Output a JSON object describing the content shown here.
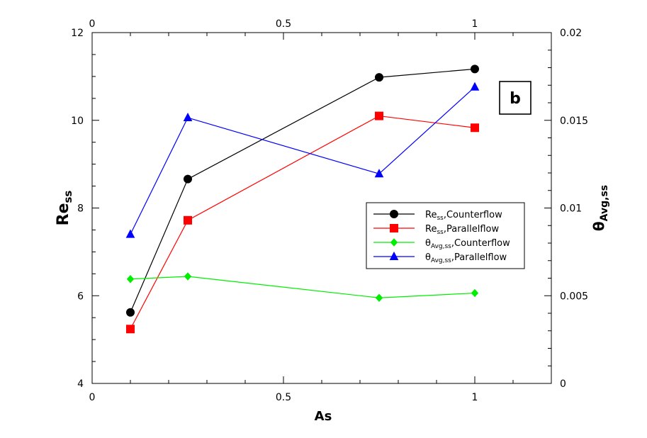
{
  "chart_data": {
    "type": "line",
    "panel_label": "b",
    "x": [
      0.1,
      0.25,
      0.75,
      1.0
    ],
    "xlabel": "As",
    "xlim": [
      0,
      1.2
    ],
    "xticks": [
      "0",
      "0.5",
      "1"
    ],
    "xticks_top": [
      "0",
      "0.5",
      "1"
    ],
    "ylabel_left": {
      "main": "Re",
      "sub": "ss"
    },
    "ylim_left": [
      4,
      12
    ],
    "yticks_left": [
      "4",
      "6",
      "8",
      "10",
      "12"
    ],
    "ylabel_right": {
      "main": "θ",
      "sub": "Avg,ss"
    },
    "ylim_right": [
      0,
      0.02
    ],
    "yticks_right": [
      "0",
      "0.005",
      "0.01",
      "0.015",
      "0.02"
    ],
    "grid": false,
    "legend_position": "right-middle",
    "series": [
      {
        "name": "Counterflow",
        "label_main": "Re",
        "label_sub": "ss",
        "axis": "left",
        "color": "#000000",
        "marker": "circle",
        "values": [
          5.62,
          8.66,
          10.98,
          11.17
        ]
      },
      {
        "name": "Parallelflow",
        "label_main": "Re",
        "label_sub": "ss",
        "axis": "left",
        "color": "#ff0000",
        "marker": "square",
        "values": [
          5.24,
          7.72,
          10.1,
          9.83
        ]
      },
      {
        "name": "Counterflow",
        "label_main": "θ",
        "label_sub": "Avg,ss",
        "axis": "right",
        "color": "#00ee00",
        "marker": "diamond",
        "values": [
          0.00595,
          0.0061,
          0.00488,
          0.00515
        ]
      },
      {
        "name": "Parallelflow",
        "label_main": "θ",
        "label_sub": "Avg,ss",
        "axis": "right",
        "color": "#0000ff",
        "marker": "triangle",
        "values": [
          0.0085,
          0.01515,
          0.01195,
          0.0169
        ]
      }
    ]
  }
}
